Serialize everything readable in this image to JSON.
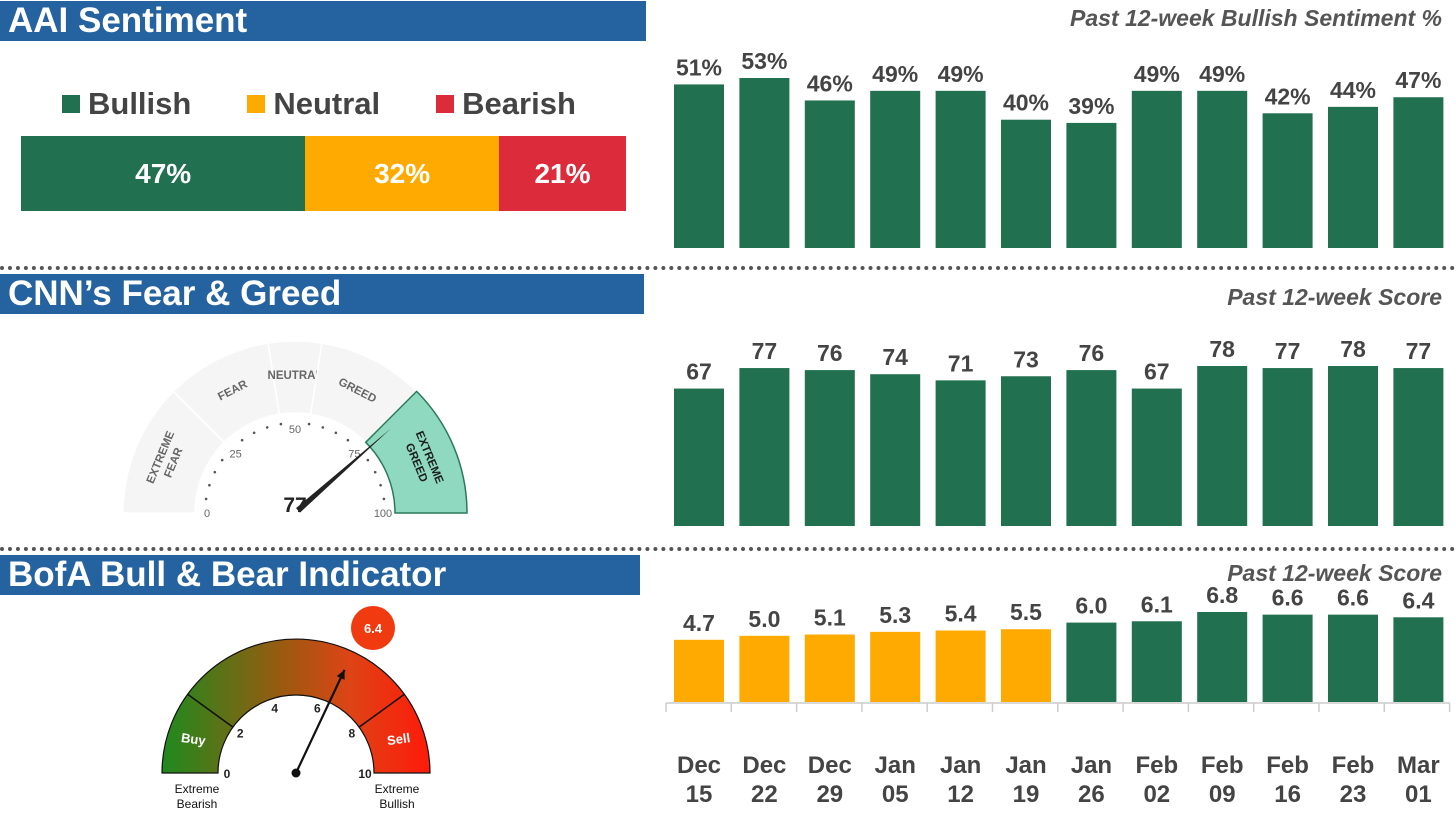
{
  "colors": {
    "green": "#217050",
    "orange": "#ffaa00",
    "red": "#dc2b3b",
    "banner": "#2563a0",
    "greed_fill": "#8fd9c0"
  },
  "aai": {
    "banner": "AAI Sentiment",
    "chart_title": "Past 12-week Bullish Sentiment %",
    "legend": [
      {
        "label": "Bullish",
        "color": "#217050"
      },
      {
        "label": "Neutral",
        "color": "#ffaa00"
      },
      {
        "label": "Bearish",
        "color": "#dc2b3b"
      }
    ],
    "stack": [
      {
        "label": "47%",
        "value": 47,
        "color": "#217050"
      },
      {
        "label": "32%",
        "value": 32,
        "color": "#ffaa00"
      },
      {
        "label": "21%",
        "value": 21,
        "color": "#dc2b3b"
      }
    ]
  },
  "cnn": {
    "banner": "CNN’s Fear & Greed",
    "chart_title": "Past 12-week Score",
    "gauge": {
      "value_label": "77",
      "value": 77,
      "zones": [
        "EXTREME FEAR",
        "FEAR",
        "NEUTRAL",
        "GREED",
        "EXTREME GREED"
      ],
      "ticks": [
        "0",
        "25",
        "50",
        "75",
        "100"
      ]
    }
  },
  "bofa": {
    "banner": "BofA Bull & Bear Indicator",
    "chart_title": "Past 12-week Score",
    "gauge": {
      "value_label": "6.4",
      "value": 6.4,
      "ticks": [
        "0",
        "2",
        "4",
        "6",
        "8",
        "10"
      ],
      "buy_label": "Buy",
      "sell_label": "Sell",
      "left_caption": "Extreme Bearish",
      "right_caption": "Extreme Bullish"
    }
  },
  "chart_data": [
    {
      "type": "bar",
      "title": "Past 12-week Bullish Sentiment %",
      "categories": [
        "Dec 15",
        "Dec 22",
        "Dec 29",
        "Jan 05",
        "Jan 12",
        "Jan 19",
        "Jan 26",
        "Feb 02",
        "Feb 09",
        "Feb 16",
        "Feb 23",
        "Mar 01"
      ],
      "values": [
        51,
        53,
        46,
        49,
        49,
        40,
        39,
        49,
        49,
        42,
        44,
        47
      ],
      "labels": [
        "51%",
        "53%",
        "46%",
        "49%",
        "49%",
        "40%",
        "39%",
        "49%",
        "49%",
        "42%",
        "44%",
        "47%"
      ],
      "ylim": [
        0,
        55
      ],
      "color": "#217050"
    },
    {
      "type": "bar",
      "title": "Past 12-week Score",
      "categories": [
        "Dec 15",
        "Dec 22",
        "Dec 29",
        "Jan 05",
        "Jan 12",
        "Jan 19",
        "Jan 26",
        "Feb 02",
        "Feb 09",
        "Feb 16",
        "Feb 23",
        "Mar 01"
      ],
      "values": [
        67,
        77,
        76,
        74,
        71,
        73,
        76,
        67,
        78,
        77,
        78,
        77
      ],
      "labels": [
        "67",
        "77",
        "76",
        "74",
        "71",
        "73",
        "76",
        "67",
        "78",
        "77",
        "78",
        "77"
      ],
      "ylim": [
        0,
        100
      ],
      "color": "#217050"
    },
    {
      "type": "bar",
      "title": "Past 12-week Score",
      "categories": [
        "Dec 15",
        "Dec 22",
        "Dec 29",
        "Jan 05",
        "Jan 12",
        "Jan 19",
        "Jan 26",
        "Feb 02",
        "Feb 09",
        "Feb 16",
        "Feb 23",
        "Mar 01"
      ],
      "values": [
        4.7,
        5.0,
        5.1,
        5.3,
        5.4,
        5.5,
        6.0,
        6.1,
        6.8,
        6.6,
        6.6,
        6.4
      ],
      "labels": [
        "4.7",
        "5.0",
        "5.1",
        "5.3",
        "5.4",
        "5.5",
        "6.0",
        "6.1",
        "6.8",
        "6.6",
        "6.6",
        "6.4"
      ],
      "colors": [
        "#ffaa00",
        "#ffaa00",
        "#ffaa00",
        "#ffaa00",
        "#ffaa00",
        "#ffaa00",
        "#217050",
        "#217050",
        "#217050",
        "#217050",
        "#217050",
        "#217050"
      ],
      "ylim": [
        0,
        7
      ]
    }
  ],
  "x_axis_labels": [
    {
      "month": "Dec",
      "day": "15"
    },
    {
      "month": "Dec",
      "day": "22"
    },
    {
      "month": "Dec",
      "day": "29"
    },
    {
      "month": "Jan",
      "day": "05"
    },
    {
      "month": "Jan",
      "day": "12"
    },
    {
      "month": "Jan",
      "day": "19"
    },
    {
      "month": "Jan",
      "day": "26"
    },
    {
      "month": "Feb",
      "day": "02"
    },
    {
      "month": "Feb",
      "day": "09"
    },
    {
      "month": "Feb",
      "day": "16"
    },
    {
      "month": "Feb",
      "day": "23"
    },
    {
      "month": "Mar",
      "day": "01"
    }
  ]
}
